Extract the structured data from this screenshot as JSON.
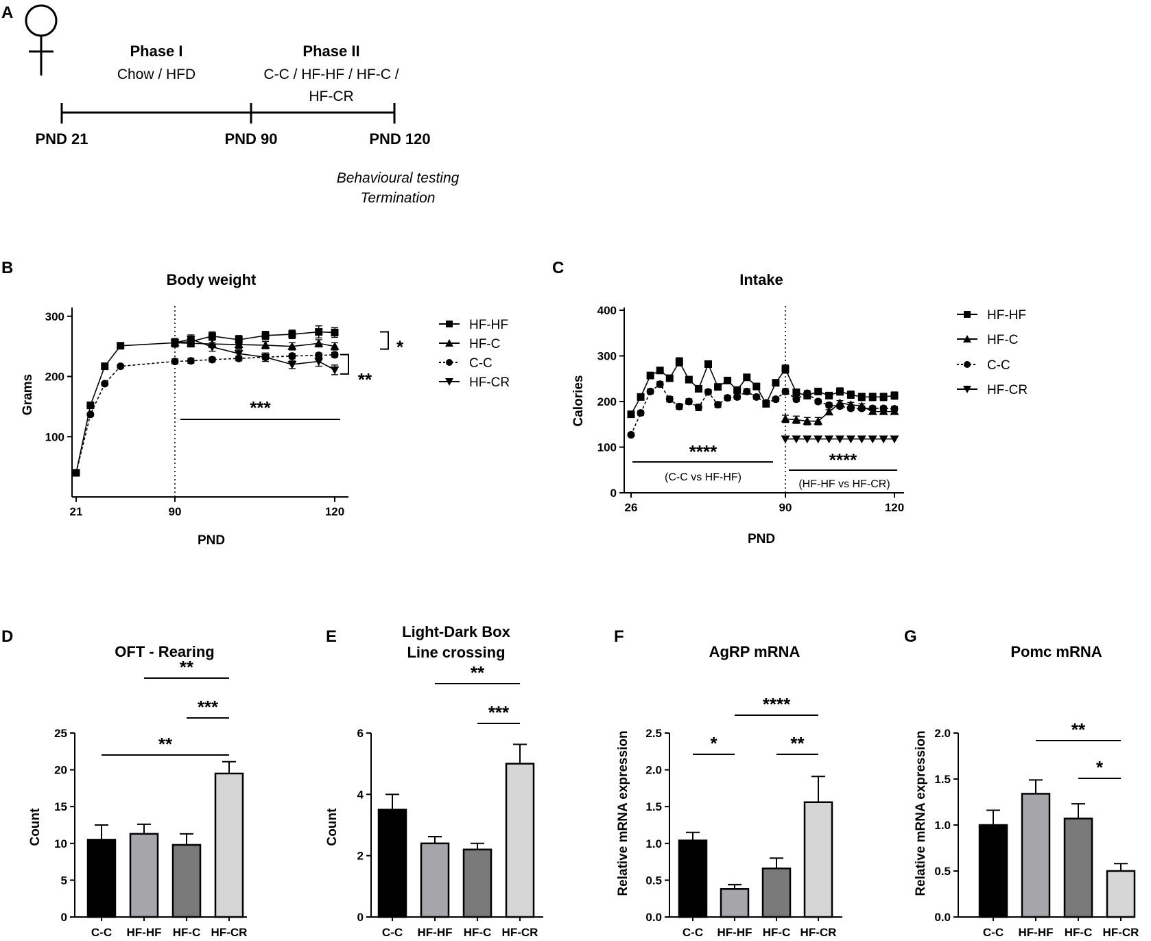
{
  "panelA": {
    "label": "A",
    "female_symbol": "female-symbol",
    "phase1_title": "Phase I",
    "phase1_diet": "Chow / HFD",
    "phase2_title": "Phase II",
    "phase2_line1": "C-C / HF-HF / HF-C /",
    "phase2_line2": "HF-CR",
    "timepoints": [
      "PND 21",
      "PND 90",
      "PND 120"
    ],
    "end_line1": "Behavioural testing",
    "end_line2": "Termination"
  },
  "chart_data": [
    {
      "id": "B",
      "type": "line",
      "title": "Body weight",
      "xlabel": "PND",
      "ylabel": "Grams",
      "xticks": [
        "21",
        "90",
        "120"
      ],
      "yticks": [
        100,
        200,
        300
      ],
      "ylim": [
        0,
        310
      ],
      "x_break_scale": {
        "phase1_domain": [
          21,
          90
        ],
        "phase2_domain": [
          90,
          120
        ]
      },
      "series": [
        {
          "name": "HF-HF",
          "marker": "square",
          "dashed": false,
          "x": [
            21,
            31,
            41,
            52,
            90,
            93,
            97,
            102,
            107,
            112,
            117,
            120
          ],
          "values": [
            40,
            152,
            217,
            251,
            256,
            258,
            267,
            261,
            268,
            270,
            274,
            273
          ],
          "err": [
            2,
            3,
            3,
            3,
            7,
            7,
            7,
            7,
            7,
            7,
            10,
            8
          ]
        },
        {
          "name": "HF-C",
          "marker": "triangle-up",
          "dashed": false,
          "x": [
            90,
            93,
            97,
            102,
            107,
            112,
            117,
            120
          ],
          "values": [
            256,
            255,
            254,
            253,
            252,
            250,
            255,
            250
          ],
          "err": [
            6,
            6,
            6,
            6,
            6,
            6,
            6,
            6
          ]
        },
        {
          "name": "C-C",
          "marker": "circle",
          "dashed": true,
          "x": [
            21,
            31,
            41,
            52,
            90,
            93,
            97,
            102,
            107,
            112,
            117,
            120
          ],
          "values": [
            40,
            137,
            188,
            217,
            225,
            226,
            228,
            230,
            232,
            234,
            235,
            236
          ],
          "err": [
            2,
            3,
            3,
            3,
            4,
            4,
            4,
            4,
            4,
            4,
            4,
            4
          ]
        },
        {
          "name": "HF-CR",
          "marker": "triangle-down",
          "dashed": false,
          "x": [
            90,
            93,
            97,
            102,
            107,
            112,
            117,
            120
          ],
          "values": [
            256,
            262,
            249,
            238,
            232,
            220,
            225,
            211
          ],
          "err": [
            7,
            7,
            7,
            7,
            7,
            7,
            8,
            8
          ]
        }
      ],
      "annotations": {
        "sig_right_1": "*",
        "sig_right_2": "**",
        "sig_bottom": "***"
      }
    },
    {
      "id": "C",
      "type": "line",
      "title": "Intake",
      "xlabel": "PND",
      "ylabel": "Calories",
      "xticks": [
        "26",
        "90",
        "120"
      ],
      "yticks": [
        0,
        100,
        200,
        300,
        400
      ],
      "ylim": [
        0,
        400
      ],
      "x_break_scale": {
        "phase1_domain": [
          26,
          90
        ],
        "phase2_domain": [
          90,
          120
        ]
      },
      "series": [
        {
          "name": "HF-HF",
          "marker": "square",
          "dashed": false,
          "x": [
            26,
            30,
            34,
            38,
            42,
            46,
            50,
            54,
            58,
            62,
            66,
            70,
            74,
            78,
            82,
            86,
            90,
            93,
            96,
            99,
            102,
            105,
            108,
            111,
            114,
            117,
            120
          ],
          "values": [
            172,
            210,
            257,
            268,
            251,
            287,
            248,
            228,
            282,
            232,
            246,
            225,
            253,
            233,
            195,
            241,
            271,
            220,
            213,
            222,
            213,
            222,
            215,
            210,
            210,
            210,
            213
          ],
          "err": [
            5,
            5,
            5,
            5,
            5,
            9,
            5,
            5,
            7,
            5,
            5,
            5,
            5,
            5,
            5,
            7,
            9,
            7,
            7,
            7,
            7,
            8,
            8,
            8,
            8,
            8,
            8
          ]
        },
        {
          "name": "HF-C",
          "marker": "triangle-up",
          "dashed": false,
          "x": [
            90,
            93,
            96,
            99,
            102,
            105,
            108,
            111,
            114,
            117,
            120
          ],
          "values": [
            162,
            160,
            157,
            157,
            177,
            197,
            193,
            190,
            178,
            178,
            178
          ],
          "err": [
            8,
            8,
            8,
            8,
            5,
            5,
            5,
            5,
            5,
            5,
            5
          ]
        },
        {
          "name": "C-C",
          "marker": "circle",
          "dashed": true,
          "x": [
            26,
            30,
            34,
            38,
            42,
            46,
            50,
            54,
            58,
            62,
            66,
            70,
            74,
            78,
            82,
            86,
            90,
            93,
            96,
            99,
            102,
            105,
            108,
            111,
            114,
            117,
            120
          ],
          "values": [
            127,
            175,
            222,
            238,
            205,
            189,
            200,
            187,
            221,
            193,
            208,
            210,
            222,
            210,
            197,
            205,
            222,
            205,
            218,
            200,
            192,
            190,
            185,
            185,
            185,
            185,
            184
          ],
          "err": [
            4,
            5,
            5,
            6,
            6,
            6,
            6,
            7,
            5,
            6,
            5,
            5,
            6,
            5,
            5,
            5,
            6,
            5,
            6,
            5,
            5,
            5,
            5,
            5,
            5,
            5,
            5
          ]
        },
        {
          "name": "HF-CR",
          "marker": "triangle-down",
          "dashed": false,
          "x": [
            90,
            93,
            96,
            99,
            102,
            105,
            108,
            111,
            114,
            117,
            120
          ],
          "values": [
            118,
            118,
            118,
            118,
            118,
            118,
            118,
            118,
            118,
            118,
            118
          ],
          "err": [
            0,
            0,
            0,
            0,
            0,
            0,
            0,
            0,
            0,
            0,
            0
          ]
        }
      ],
      "annotations": {
        "sig_left": "****",
        "sig_left_note": "(C-C vs HF-HF)",
        "sig_right": "****",
        "sig_right_note": "(HF-HF vs HF-CR)"
      }
    },
    {
      "id": "D",
      "type": "bar",
      "title": "OFT - Rearing",
      "ylabel": "Count",
      "categories": [
        "C-C",
        "HF-HF",
        "HF-C",
        "HF-CR"
      ],
      "values": [
        10.5,
        11.3,
        9.8,
        19.5
      ],
      "err": [
        2.0,
        1.3,
        1.5,
        1.6
      ],
      "yticks": [
        0,
        5,
        10,
        15,
        20,
        25
      ],
      "ylim": [
        0,
        25
      ],
      "colors": [
        "#000000",
        "#a6a6aa",
        "#7a7a7a",
        "#d6d6d6"
      ],
      "significance": [
        {
          "from": 1,
          "to": 3,
          "label": "**"
        },
        {
          "from": 2,
          "to": 3,
          "label": "***"
        },
        {
          "from": 0,
          "to": 3,
          "label": "**"
        }
      ]
    },
    {
      "id": "E",
      "type": "bar",
      "title": "Light-Dark Box",
      "title2": "Line crossing",
      "ylabel": "Count",
      "categories": [
        "C-C",
        "HF-HF",
        "HF-C",
        "HF-CR"
      ],
      "values": [
        3.5,
        2.4,
        2.2,
        5.0
      ],
      "err": [
        0.5,
        0.22,
        0.2,
        0.63
      ],
      "yticks": [
        0,
        2,
        4,
        6
      ],
      "ylim": [
        0,
        6
      ],
      "colors": [
        "#000000",
        "#a6a6aa",
        "#7a7a7a",
        "#d6d6d6"
      ],
      "significance": [
        {
          "from": 1,
          "to": 3,
          "label": "**"
        },
        {
          "from": 2,
          "to": 3,
          "label": "***"
        }
      ]
    },
    {
      "id": "F",
      "type": "bar",
      "title": "AgRP mRNA",
      "ylabel": "Relative mRNA expression",
      "categories": [
        "C-C",
        "HF-HF",
        "HF-C",
        "HF-CR"
      ],
      "values": [
        1.04,
        0.38,
        0.66,
        1.56
      ],
      "err": [
        0.11,
        0.06,
        0.14,
        0.35
      ],
      "yticks": [
        "0.0",
        "0.5",
        "1.0",
        "1.5",
        "2.0",
        "2.5"
      ],
      "ylim": [
        0,
        2.5
      ],
      "colors": [
        "#000000",
        "#a6a6aa",
        "#7a7a7a",
        "#d6d6d6"
      ],
      "significance": [
        {
          "from": 0,
          "to": 1,
          "label": "*"
        },
        {
          "from": 1,
          "to": 3,
          "label": "****"
        },
        {
          "from": 2,
          "to": 3,
          "label": "**"
        }
      ]
    },
    {
      "id": "G",
      "type": "bar",
      "title": "Pomc mRNA",
      "ylabel": "Relative mRNA expression",
      "categories": [
        "C-C",
        "HF-HF",
        "HF-C",
        "HF-CR"
      ],
      "values": [
        1.0,
        1.34,
        1.07,
        0.5
      ],
      "err": [
        0.16,
        0.15,
        0.16,
        0.08
      ],
      "yticks": [
        "0.0",
        "0.5",
        "1.0",
        "1.5",
        "2.0"
      ],
      "ylim": [
        0,
        2.0
      ],
      "colors": [
        "#000000",
        "#a6a6aa",
        "#7a7a7a",
        "#d6d6d6"
      ],
      "significance": [
        {
          "from": 1,
          "to": 3,
          "label": "**"
        },
        {
          "from": 2,
          "to": 3,
          "label": "*"
        }
      ]
    }
  ]
}
